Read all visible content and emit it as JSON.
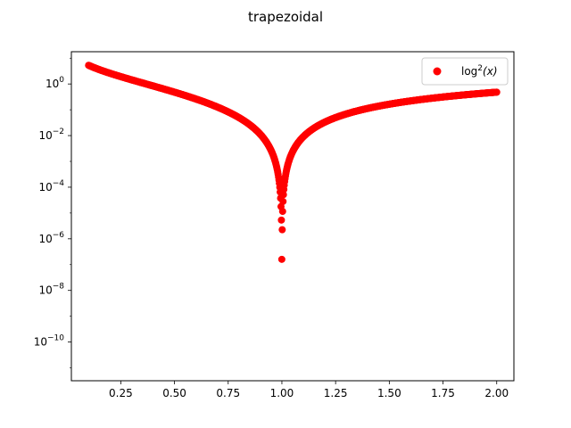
{
  "chart_data": {
    "type": "scatter",
    "title": "trapezoidal",
    "xlabel": "",
    "ylabel": "",
    "xlim": [
      0.02,
      2.08
    ],
    "yscale": "log",
    "ylim_exponents": [
      -11.5,
      1.25
    ],
    "xticks": [
      "0.25",
      "0.50",
      "0.75",
      "1.00",
      "1.25",
      "1.50",
      "1.75",
      "2.00"
    ],
    "xtick_values": [
      0.25,
      0.5,
      0.75,
      1.0,
      1.25,
      1.5,
      1.75,
      2.0
    ],
    "ytick_exponents": [
      0,
      -2,
      -4,
      -6,
      -8,
      -10
    ],
    "legend": {
      "position": "top-right",
      "entries": [
        {
          "label_base": "log",
          "label_sup": "2",
          "label_arg": "(x)"
        }
      ]
    },
    "series": [
      {
        "function": "log(x)^2",
        "color": "#ff0000",
        "marker": "circle",
        "x_range": [
          0.1,
          2.0
        ],
        "num_points": 1000
      }
    ],
    "grid": false
  }
}
